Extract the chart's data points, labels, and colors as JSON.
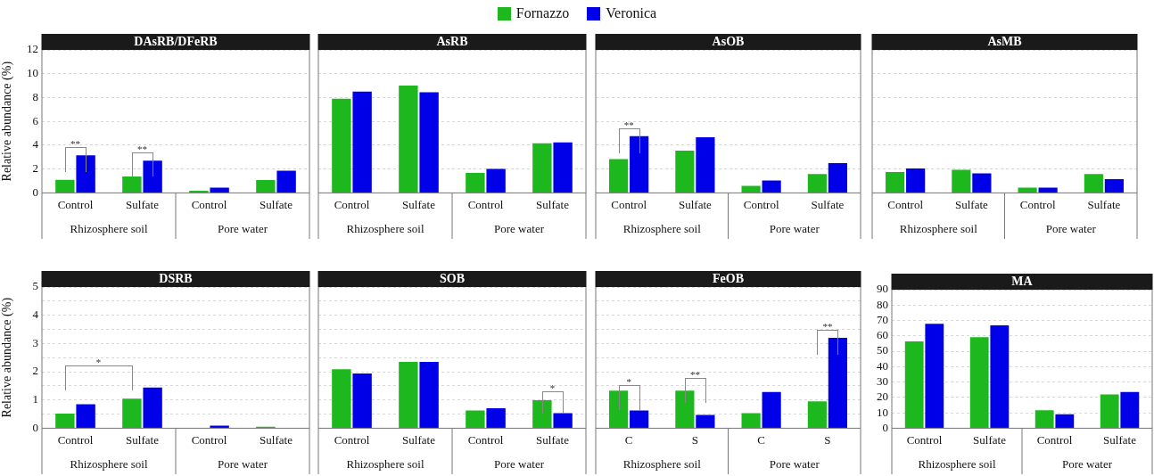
{
  "chart_data": [
    {
      "type": "bar",
      "title": "DAsRB/DFeRB",
      "ylabel": "Relative abundance (%)",
      "legend": "top",
      "grid": "y",
      "categories": [
        "Control",
        "Sulfate",
        "Control",
        "Sulfate"
      ],
      "series": [
        {
          "name": "Fornazzo",
          "color": "#1db81d",
          "values": [
            1.1,
            1.37,
            0.18,
            1.07
          ]
        },
        {
          "name": "Veronica",
          "color": "#0000e8",
          "values": [
            3.15,
            2.7,
            0.45,
            1.87
          ]
        }
      ],
      "ylim": [
        0,
        12
      ],
      "yticks": [
        0,
        2,
        4,
        6,
        8,
        10,
        12
      ],
      "annotations": [
        "Rhizosphere soil",
        "Pore water",
        "**",
        "**"
      ]
    },
    {
      "type": "bar",
      "title": "AsRB",
      "grid": "y",
      "tick_labels": "x",
      "categories": [
        "Control",
        "Sulfate",
        "Control",
        "Sulfate"
      ],
      "series": [
        {
          "color": "#1db81d",
          "values": [
            7.9,
            9.0,
            1.67,
            4.17
          ]
        },
        {
          "color": "#0000e8",
          "values": [
            8.5,
            8.45,
            2.02,
            4.23
          ]
        }
      ],
      "ylim": [
        0,
        12
      ],
      "yticks": [
        0,
        2,
        4,
        6,
        8,
        10,
        12
      ],
      "annotations": [
        "Rhizosphere soil",
        "Pore water"
      ]
    },
    {
      "type": "bar",
      "title": "AsOB",
      "grid": "y",
      "tick_labels": "x",
      "categories": [
        "Control",
        "Sulfate",
        "Control",
        "Sulfate"
      ],
      "series": [
        {
          "color": "#1db81d",
          "values": [
            2.83,
            3.54,
            0.6,
            1.58
          ]
        },
        {
          "color": "#0000e8",
          "values": [
            4.76,
            4.67,
            1.04,
            2.5
          ]
        }
      ],
      "ylim": [
        0,
        12
      ],
      "yticks": [
        0,
        2,
        4,
        6,
        8,
        10,
        12
      ],
      "annotations": [
        "Rhizosphere soil",
        "Pore water",
        "**"
      ]
    },
    {
      "type": "bar",
      "title": "AsMB",
      "grid": "y",
      "tick_labels": "x",
      "categories": [
        "Control",
        "Sulfate",
        "Control",
        "Sulfate"
      ],
      "series": [
        {
          "color": "#1db81d",
          "values": [
            1.76,
            1.93,
            0.45,
            1.58
          ]
        },
        {
          "color": "#0000e8",
          "values": [
            2.05,
            1.64,
            0.45,
            1.16
          ]
        }
      ],
      "ylim": [
        0,
        12
      ],
      "yticks": [
        0,
        2,
        4,
        6,
        8,
        10,
        12
      ],
      "annotations": [
        "Rhizosphere soil",
        "Pore water"
      ]
    },
    {
      "type": "bar",
      "title": "DSRB",
      "ylabel": "Relative abundance (%)",
      "grid": "y",
      "categories": [
        "Control",
        "Sulfate",
        "Control",
        "Sulfate"
      ],
      "series": [
        {
          "color": "#1db81d",
          "values": [
            0.52,
            1.05,
            0,
            0.05
          ]
        },
        {
          "color": "#0000e8",
          "values": [
            0.85,
            1.44,
            0.09,
            0
          ]
        }
      ],
      "ylim": [
        0,
        5
      ],
      "yticks": [
        0,
        {
          "value": 0.5,
          "label": null
        },
        1,
        {
          "value": 1.5,
          "label": null
        },
        2,
        {
          "value": 2.5,
          "label": null
        },
        3,
        {
          "value": 3.5,
          "label": null
        },
        4,
        {
          "value": 4.5,
          "label": null
        },
        5
      ],
      "annotations": [
        "Rhizosphere soil",
        "Pore water",
        "*"
      ]
    },
    {
      "type": "bar",
      "title": "SOB",
      "grid": "y",
      "tick_labels": "x",
      "categories": [
        "Control",
        "Sulfate",
        "Control",
        "Sulfate"
      ],
      "series": [
        {
          "color": "#1db81d",
          "values": [
            2.09,
            2.35,
            0.63,
            0.99
          ]
        },
        {
          "color": "#0000e8",
          "values": [
            1.94,
            2.35,
            0.71,
            0.53
          ]
        }
      ],
      "ylim": [
        0,
        5
      ],
      "yticks": [
        0,
        {
          "value": 0.5,
          "label": null
        },
        1,
        {
          "value": 1.5,
          "label": null
        },
        2,
        {
          "value": 2.5,
          "label": null
        },
        3,
        {
          "value": 3.5,
          "label": null
        },
        4,
        {
          "value": 4.5,
          "label": null
        },
        5
      ],
      "annotations": [
        "Rhizosphere soil",
        "Pore water",
        "*"
      ]
    },
    {
      "type": "bar",
      "title": "FeOB",
      "grid": "y",
      "tick_labels": "x",
      "categories": [
        "C",
        "S",
        "C",
        "S"
      ],
      "series": [
        {
          "color": "#1db81d",
          "values": [
            1.33,
            1.33,
            0.53,
            0.95
          ]
        },
        {
          "color": "#0000e8",
          "values": [
            0.63,
            0.47,
            1.28,
            3.2
          ]
        }
      ],
      "ylim": [
        0,
        5
      ],
      "yticks": [
        0,
        {
          "value": 0.5,
          "label": null
        },
        1,
        {
          "value": 1.5,
          "label": null
        },
        2,
        {
          "value": 2.5,
          "label": null
        },
        3,
        {
          "value": 3.5,
          "label": null
        },
        4,
        {
          "value": 4.5,
          "label": null
        },
        5
      ],
      "annotations": [
        "Rhizosphere soil",
        "Pore water",
        "*",
        "**",
        "**"
      ]
    },
    {
      "type": "bar",
      "title": "MA",
      "grid": "y",
      "categories": [
        "Control",
        "Sulfate",
        "Control",
        "Sulfate"
      ],
      "series": [
        {
          "color": "#1db81d",
          "values": [
            56.4,
            59.1,
            11.7,
            21.9
          ]
        },
        {
          "color": "#0000e8",
          "values": [
            67.9,
            66.8,
            9.1,
            23.5
          ]
        }
      ],
      "ylim": [
        0,
        90
      ],
      "yticks": [
        0,
        10,
        20,
        30,
        40,
        50,
        60,
        70,
        80,
        90
      ],
      "annotations": [
        "Rhizosphere soil",
        "Pore water"
      ]
    }
  ]
}
